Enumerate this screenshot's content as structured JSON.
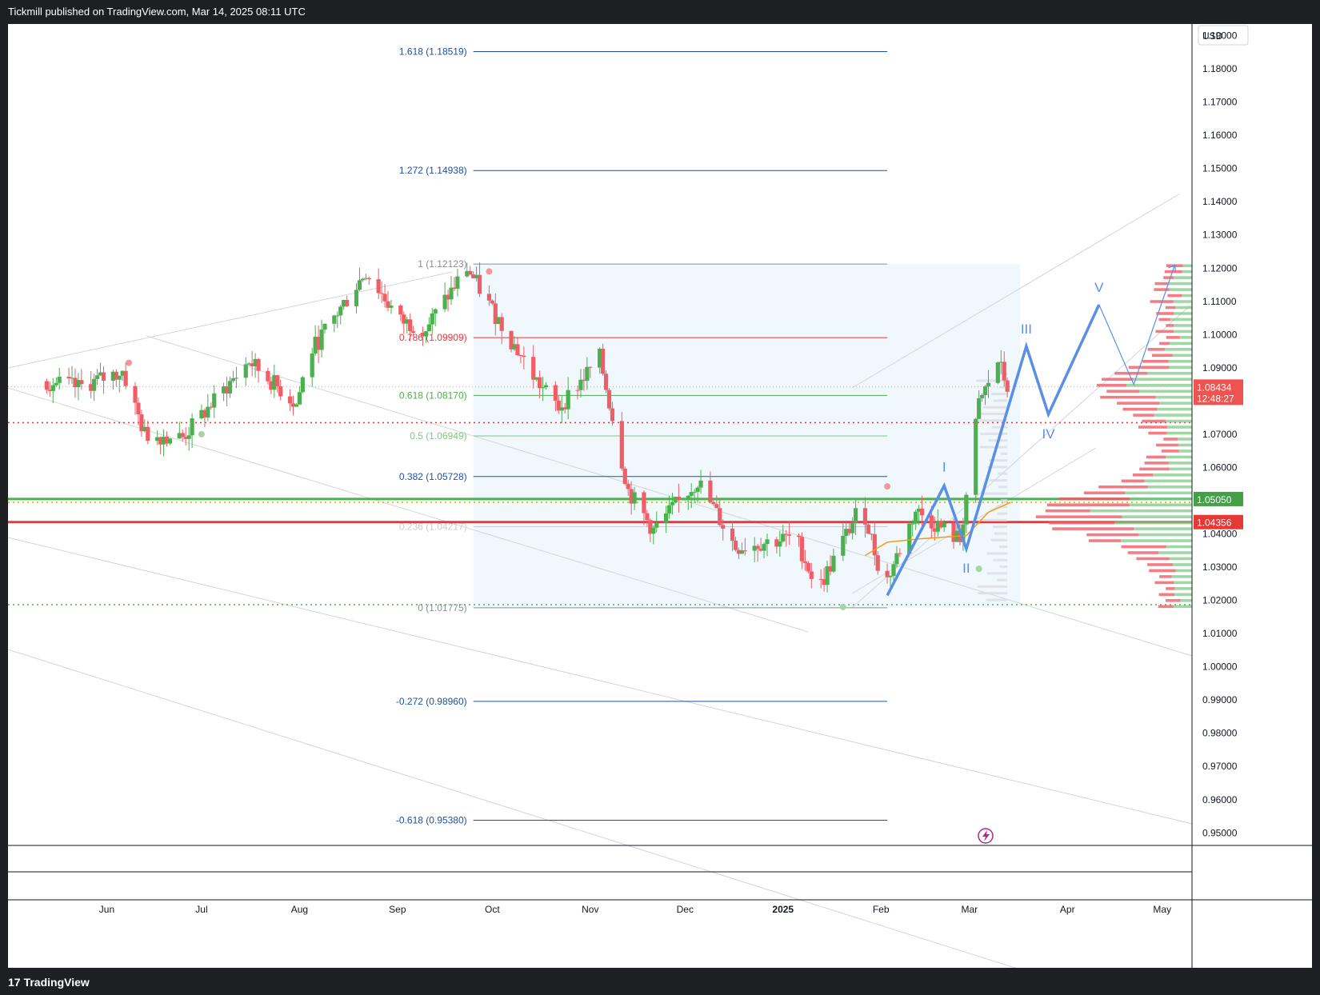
{
  "header": {
    "publisher": "Tickmill published on TradingView.com, Mar 14, 2025 08:11 UTC"
  },
  "footer": {
    "brand": "TradingView",
    "brand_mark": "17"
  },
  "price_axis": {
    "currency": "USD",
    "ticks": [
      "1.19000",
      "1.18000",
      "1.17000",
      "1.16000",
      "1.15000",
      "1.14000",
      "1.13000",
      "1.12000",
      "1.11000",
      "1.10000",
      "1.09000",
      "1.08000",
      "1.07000",
      "1.06000",
      "1.05000",
      "1.04000",
      "1.03000",
      "1.02000",
      "1.01000",
      "1.00000",
      "0.99000",
      "0.98000",
      "0.97000",
      "0.96000",
      "0.95000"
    ],
    "current_price": "1.08434",
    "countdown": "12:48:27",
    "support_label": "1.05050",
    "resistance_label": "1.04356"
  },
  "time_axis": {
    "labels": [
      "Jun",
      "Jul",
      "Aug",
      "Sep",
      "Oct",
      "Nov",
      "Dec",
      "2025",
      "Feb",
      "Mar",
      "Apr",
      "May"
    ]
  },
  "fib_levels": [
    {
      "label": "1.618 (1.18519)",
      "price": 1.18519,
      "color": "#1e4fa8"
    },
    {
      "label": "1.272 (1.14938)",
      "price": 1.14938,
      "color": "#1e4fa8"
    },
    {
      "label": "1 (1.12123)",
      "price": 1.12123,
      "color": "#8a8e99"
    },
    {
      "label": "0.786 (1.09909)",
      "price": 1.09909,
      "color": "#e8373e"
    },
    {
      "label": "0.618 (1.08170)",
      "price": 1.0817,
      "color": "#4caf50"
    },
    {
      "label": "0.5 (1.06949)",
      "price": 1.06949,
      "color": "#81c784"
    },
    {
      "label": "0.382 (1.05728)",
      "price": 1.05728,
      "color": "#1e4fa8"
    },
    {
      "label": "0.236 (1.04217)",
      "price": 1.04217,
      "color": "#c9ccd3"
    },
    {
      "label": "0 (1.01775)",
      "price": 1.01775,
      "color": "#8a8e99"
    },
    {
      "label": "-0.272 (0.98960)",
      "price": 0.9896,
      "color": "#1e4fa8"
    },
    {
      "label": "-0.618 (0.95380)",
      "price": 0.9538,
      "color": "#1e4fa8"
    }
  ],
  "wave_labels": [
    "I",
    "II",
    "III",
    "IV",
    "V"
  ],
  "chart_data": {
    "type": "candlestick",
    "instrument_quote": "USD",
    "ylim": [
      0.9455,
      1.1935
    ],
    "current_price": 1.08434,
    "horizontal_levels": [
      {
        "price": 1.0505,
        "color": "#4caf50"
      },
      {
        "price": 1.04356,
        "color": "#e8373e"
      },
      {
        "price": 1.0735,
        "color": "#e8373e",
        "style": "dotted"
      },
      {
        "price": 1.0187,
        "color": "#4caf50",
        "style": "dotted"
      },
      {
        "price": 1.0495,
        "color": "#c6b400",
        "style": "dotted"
      }
    ],
    "anchors": [
      {
        "date": "2024-05-13",
        "price": 1.086
      },
      {
        "date": "2024-05-24",
        "price": 1.084
      },
      {
        "date": "2024-06-07",
        "price": 1.089
      },
      {
        "date": "2024-06-14",
        "price": 1.07
      },
      {
        "date": "2024-06-26",
        "price": 1.069
      },
      {
        "date": "2024-07-17",
        "price": 1.092
      },
      {
        "date": "2024-08-01",
        "price": 1.079
      },
      {
        "date": "2024-08-05",
        "price": 1.094
      },
      {
        "date": "2024-08-23",
        "price": 1.119
      },
      {
        "date": "2024-09-03",
        "price": 1.104
      },
      {
        "date": "2024-09-11",
        "price": 1.102
      },
      {
        "date": "2024-09-24",
        "price": 1.12
      },
      {
        "date": "2024-10-01",
        "price": 1.109
      },
      {
        "date": "2024-10-16",
        "price": 1.086
      },
      {
        "date": "2024-10-23",
        "price": 1.078
      },
      {
        "date": "2024-11-05",
        "price": 1.093
      },
      {
        "date": "2024-11-14",
        "price": 1.053
      },
      {
        "date": "2024-11-22",
        "price": 1.041
      },
      {
        "date": "2024-12-06",
        "price": 1.056
      },
      {
        "date": "2024-12-18",
        "price": 1.036
      },
      {
        "date": "2025-01-06",
        "price": 1.039
      },
      {
        "date": "2025-01-13",
        "price": 1.023
      },
      {
        "date": "2025-01-27",
        "price": 1.049
      },
      {
        "date": "2025-02-03",
        "price": 1.024
      },
      {
        "date": "2025-02-13",
        "price": 1.047
      },
      {
        "date": "2025-02-27",
        "price": 1.038
      },
      {
        "date": "2025-03-05",
        "price": 1.079
      },
      {
        "date": "2025-03-11",
        "price": 1.092
      },
      {
        "date": "2025-03-14",
        "price": 1.0843
      }
    ],
    "projection": [
      {
        "label": "I",
        "date": "2025-02-21",
        "price": 1.0545
      },
      {
        "label": "II",
        "date": "2025-02-28",
        "price": 1.0355
      },
      {
        "label": "III",
        "date": "2025-03-19",
        "price": 1.0965
      },
      {
        "label": "IV",
        "date": "2025-03-26",
        "price": 1.076
      },
      {
        "label": "V",
        "date": "2025-04-11",
        "price": 1.109
      }
    ],
    "moving_average": [
      {
        "date": "2025-01-27",
        "price": 1.0335
      },
      {
        "date": "2025-02-03",
        "price": 1.0375
      },
      {
        "date": "2025-02-13",
        "price": 1.0385
      },
      {
        "date": "2025-02-28",
        "price": 1.0395
      },
      {
        "date": "2025-03-07",
        "price": 1.0465
      },
      {
        "date": "2025-03-14",
        "price": 1.0495
      }
    ]
  }
}
